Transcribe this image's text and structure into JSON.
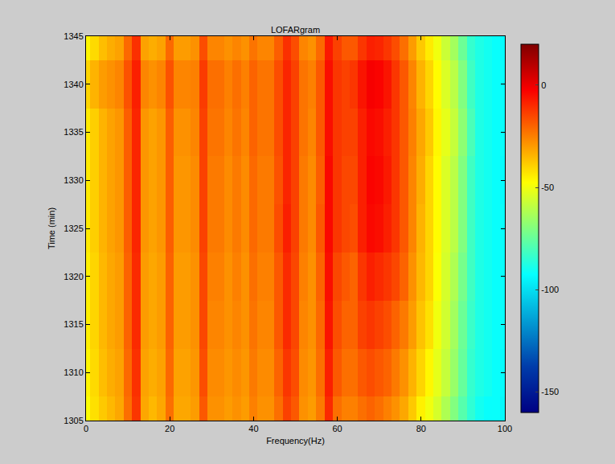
{
  "chart_data": {
    "type": "heatmap",
    "title": "LOFARgram",
    "x_label": "Frequency(Hz)",
    "y_label": "Time (min)",
    "color": "Jet",
    "grid": false,
    "xlim": [
      0,
      100
    ],
    "ylim": [
      1305,
      1345
    ],
    "xticks": [
      0,
      20,
      40,
      60,
      80,
      100
    ],
    "yticks": [
      1305,
      1310,
      1315,
      1320,
      1325,
      1330,
      1335,
      1340,
      1345
    ],
    "colorbar": {
      "range": [
        -160,
        20
      ],
      "ticks": [
        0,
        -50,
        -100,
        -150
      ]
    },
    "x": [
      0,
      2,
      4,
      6,
      8,
      10,
      12,
      14,
      16,
      18,
      20,
      22,
      24,
      26,
      28,
      30,
      32,
      34,
      36,
      38,
      40,
      42,
      44,
      46,
      48,
      50,
      52,
      54,
      56,
      58,
      60,
      62,
      64,
      66,
      68,
      70,
      72,
      74,
      76,
      78,
      80,
      82,
      84,
      86,
      88,
      90,
      92,
      94,
      96,
      98,
      100
    ],
    "y": [
      1305,
      1310,
      1315,
      1320,
      1325,
      1330,
      1335,
      1340,
      1345
    ],
    "z": [
      [
        -48,
        -42,
        -38,
        -35,
        -32,
        -22,
        -12,
        -32,
        -35,
        -32,
        -22,
        -32,
        -32,
        -30,
        -18,
        -28,
        -28,
        -30,
        -28,
        -30,
        -25,
        -28,
        -28,
        -22,
        -14,
        -18,
        -28,
        -30,
        -24,
        -10,
        -22,
        -25,
        -25,
        -22,
        -20,
        -22,
        -25,
        -28,
        -32,
        -38,
        -45,
        -50,
        -55,
        -62,
        -70,
        -78,
        -85,
        -90,
        -92,
        -92,
        -94
      ],
      [
        -46,
        -41,
        -36,
        -33,
        -31,
        -21,
        -11,
        -31,
        -33,
        -31,
        -21,
        -31,
        -31,
        -29,
        -16,
        -27,
        -27,
        -29,
        -27,
        -29,
        -24,
        -27,
        -27,
        -20,
        -12,
        -16,
        -27,
        -29,
        -22,
        -8,
        -18,
        -22,
        -22,
        -18,
        -16,
        -18,
        -20,
        -24,
        -28,
        -34,
        -40,
        -46,
        -52,
        -58,
        -66,
        -75,
        -84,
        -88,
        -90,
        -92,
        -93
      ],
      [
        -45,
        -40,
        -35,
        -32,
        -30,
        -20,
        -10,
        -30,
        -32,
        -30,
        -20,
        -30,
        -30,
        -28,
        -15,
        -26,
        -26,
        -28,
        -26,
        -28,
        -23,
        -26,
        -26,
        -18,
        -10,
        -15,
        -26,
        -28,
        -21,
        -6,
        -16,
        -20,
        -20,
        -14,
        -12,
        -14,
        -16,
        -20,
        -24,
        -30,
        -37,
        -42,
        -50,
        -56,
        -64,
        -74,
        -83,
        -88,
        -90,
        -92,
        -92
      ],
      [
        -45,
        -40,
        -35,
        -32,
        -30,
        -20,
        -10,
        -30,
        -32,
        -30,
        -20,
        -30,
        -30,
        -28,
        -15,
        -25,
        -25,
        -28,
        -25,
        -28,
        -22,
        -25,
        -25,
        -18,
        -10,
        -15,
        -25,
        -28,
        -20,
        -5,
        -15,
        -18,
        -20,
        -12,
        -8,
        -10,
        -12,
        -15,
        -20,
        -28,
        -35,
        -40,
        -48,
        -55,
        -62,
        -72,
        -82,
        -88,
        -90,
        -92,
        -92
      ],
      [
        -44,
        -39,
        -34,
        -31,
        -29,
        -19,
        -9,
        -29,
        -31,
        -29,
        -19,
        -29,
        -29,
        -27,
        -14,
        -24,
        -24,
        -27,
        -24,
        -27,
        -21,
        -24,
        -24,
        -16,
        -8,
        -14,
        -24,
        -27,
        -18,
        -4,
        -12,
        -15,
        -16,
        -8,
        -4,
        -5,
        -8,
        -12,
        -18,
        -26,
        -34,
        -40,
        -47,
        -54,
        -60,
        -70,
        -82,
        -88,
        -90,
        -92,
        -92
      ],
      [
        -44,
        -39,
        -34,
        -31,
        -29,
        -19,
        -9,
        -29,
        -31,
        -29,
        -19,
        -29,
        -29,
        -27,
        -14,
        -24,
        -24,
        -27,
        -24,
        -27,
        -21,
        -24,
        -24,
        -17,
        -9,
        -14,
        -24,
        -27,
        -19,
        -4,
        -12,
        -15,
        -15,
        -8,
        -3,
        -4,
        -7,
        -12,
        -18,
        -26,
        -33,
        -40,
        -47,
        -54,
        -60,
        -70,
        -82,
        -88,
        -90,
        -92,
        -93
      ],
      [
        -44,
        -39,
        -34,
        -31,
        -29,
        -19,
        -9,
        -29,
        -31,
        -29,
        -19,
        -28,
        -28,
        -26,
        -14,
        -23,
        -23,
        -26,
        -23,
        -26,
        -20,
        -23,
        -23,
        -16,
        -9,
        -14,
        -23,
        -26,
        -18,
        -5,
        -12,
        -14,
        -14,
        -8,
        -4,
        -5,
        -8,
        -12,
        -18,
        -25,
        -32,
        -38,
        -46,
        -52,
        -58,
        -68,
        -80,
        -88,
        -90,
        -92,
        -92
      ],
      [
        -40,
        -34,
        -30,
        -28,
        -26,
        -17,
        -8,
        -26,
        -28,
        -26,
        -17,
        -26,
        -26,
        -25,
        -13,
        -22,
        -22,
        -25,
        -22,
        -25,
        -20,
        -23,
        -23,
        -16,
        -9,
        -14,
        -23,
        -25,
        -18,
        -5,
        -12,
        -14,
        -12,
        -6,
        -2,
        -3,
        -6,
        -12,
        -18,
        -26,
        -34,
        -40,
        -47,
        -54,
        -60,
        -70,
        -82,
        -88,
        -90,
        -92,
        -92
      ],
      [
        -46,
        -41,
        -36,
        -33,
        -31,
        -21,
        -11,
        -31,
        -33,
        -31,
        -21,
        -30,
        -30,
        -28,
        -16,
        -26,
        -26,
        -28,
        -26,
        -28,
        -23,
        -26,
        -26,
        -19,
        -11,
        -16,
        -26,
        -28,
        -21,
        -7,
        -14,
        -18,
        -18,
        -12,
        -8,
        -9,
        -12,
        -16,
        -22,
        -30,
        -38,
        -44,
        -50,
        -57,
        -64,
        -74,
        -84,
        -88,
        -90,
        -92,
        -93
      ]
    ]
  }
}
